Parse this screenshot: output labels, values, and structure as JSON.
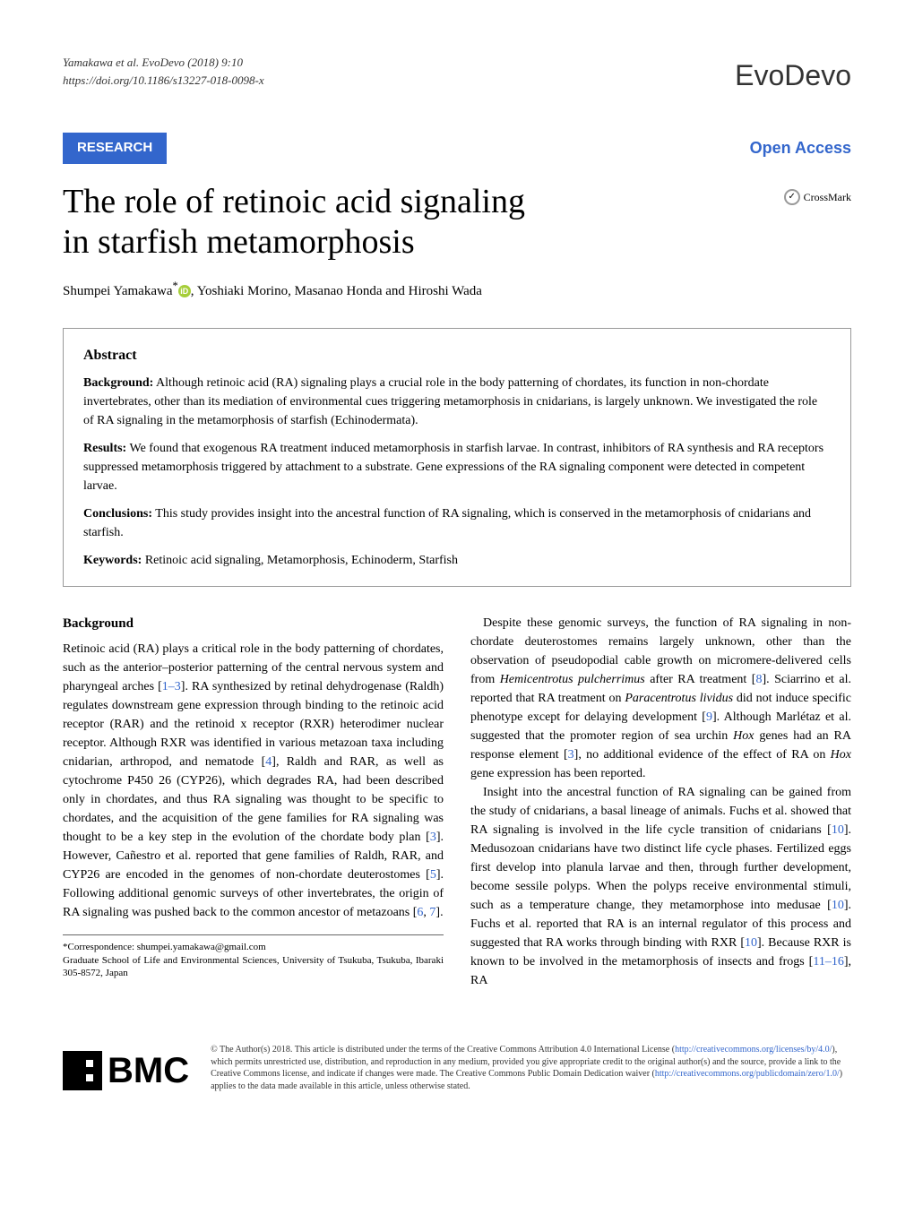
{
  "header": {
    "citation_line1": "Yamakawa et al. EvoDevo  (2018) 9:10",
    "citation_line2": "https://doi.org/10.1186/s13227-018-0098-x",
    "journal_name": "EvoDevo"
  },
  "category": {
    "label": "RESEARCH",
    "open_access": "Open Access"
  },
  "crossmark": {
    "label": "CrossMark"
  },
  "article": {
    "title_line1": "The role of retinoic acid signaling",
    "title_line2": "in starfish metamorphosis",
    "authors_prefix": "Shumpei Yamakawa",
    "authors_suffix": ", Yoshiaki Morino, Masanao Honda and Hiroshi Wada",
    "asterisk": "*"
  },
  "abstract": {
    "heading": "Abstract",
    "background_label": "Background:",
    "background_text": " Although retinoic acid (RA) signaling plays a crucial role in the body patterning of chordates, its function in non-chordate invertebrates, other than its mediation of environmental cues triggering metamorphosis in cnidarians, is largely unknown. We investigated the role of RA signaling in the metamorphosis of starfish (Echinodermata).",
    "results_label": "Results:",
    "results_text": " We found that exogenous RA treatment induced metamorphosis in starfish larvae. In contrast, inhibitors of RA synthesis and RA receptors suppressed metamorphosis triggered by attachment to a substrate. Gene expressions of the RA signaling component were detected in competent larvae.",
    "conclusions_label": "Conclusions:",
    "conclusions_text": " This study provides insight into the ancestral function of RA signaling, which is conserved in the metamorphosis of cnidarians and starfish.",
    "keywords_label": "Keywords:",
    "keywords_text": " Retinoic acid signaling, Metamorphosis, Echinoderm, Starfish"
  },
  "body": {
    "background_heading": "Background",
    "para1a": "Retinoic acid (RA) plays a critical role in the body patterning of chordates, such as the anterior–posterior patterning of the central nervous system and pharyngeal arches [",
    "cite1": "1–3",
    "para1b": "]. RA synthesized by retinal dehydrogenase (Raldh) regulates downstream gene expression through binding to the retinoic acid receptor (RAR) and the retinoid x receptor (RXR) heterodimer nuclear receptor. Although RXR was identified in various metazoan taxa including cnidarian, arthropod, and nematode [",
    "cite4": "4",
    "para1c": "], Raldh and RAR, as well as cytochrome P450 26 (CYP26), which degrades RA, had been described only in chordates, and thus RA signaling was thought to be specific to chordates, and the acquisition of the gene families for RA signaling was thought to be a key step in the evolution of the chordate body plan [",
    "cite3": "3",
    "para1d": "]. However, Cañestro et al. reported that gene families of Raldh, RAR, and CYP26 are encoded in the genomes of non-chordate deuterostomes [",
    "cite5": "5",
    "para1e": "]. Following additional genomic surveys of other invertebrates, the origin of RA signaling was pushed back to the common ancestor of metazoans [",
    "cite6": "6",
    "cite_sep": ", ",
    "cite7": "7",
    "para1f": "].",
    "para2a": "Despite these genomic surveys, the function of RA signaling in non-chordate deuterostomes remains largely unknown, other than the observation of pseudopodial cable growth on micromere-delivered cells from ",
    "species1": "Hemicentrotus pulcherrimus",
    "para2b": " after RA treatment [",
    "cite8": "8",
    "para2c": "]. Sciarrino et al. reported that RA treatment on ",
    "species2": "Paracentrotus lividus",
    "para2d": " did not induce specific phenotype except for delaying development [",
    "cite9": "9",
    "para2e": "]. Although Marlétaz et al. suggested that the promoter region of sea urchin ",
    "hox1": "Hox",
    "para2f": " genes had an RA response element [",
    "cite3b": "3",
    "para2g": "], no additional evidence of the effect of RA on ",
    "hox2": "Hox",
    "para2h": " gene expression has been reported.",
    "para3a": "Insight into the ancestral function of RA signaling can be gained from the study of cnidarians, a basal lineage of animals. Fuchs et al. showed that RA signaling is involved in the life cycle transition of cnidarians [",
    "cite10": "10",
    "para3b": "]. Medusozoan cnidarians have two distinct life cycle phases. Fertilized eggs first develop into planula larvae and then, through further development, become sessile polyps. When the polyps receive environmental stimuli, such as a temperature change, they metamorphose into medusae [",
    "cite10b": "10",
    "para3c": "]. Fuchs et al. reported that RA is an internal regulator of this process and suggested that RA works through binding with RXR [",
    "cite10c": "10",
    "para3d": "]. Because RXR is known to be involved in the metamorphosis of insects and frogs [",
    "cite11": "11–16",
    "para3e": "], RA"
  },
  "correspondence": {
    "label": "*Correspondence:",
    "email": " shumpei.yamakawa@gmail.com",
    "affiliation": "Graduate School of Life and Environmental Sciences, University of Tsukuba, Tsukuba, Ibaraki 305-8572, Japan"
  },
  "footer": {
    "bmc": "BMC",
    "license1": "© The Author(s) 2018. This article is distributed under the terms of the Creative Commons Attribution 4.0 International License (",
    "license_url1": "http://creativecommons.org/licenses/by/4.0/",
    "license2": "), which permits unrestricted use, distribution, and reproduction in any medium, provided you give appropriate credit to the original author(s) and the source, provide a link to the Creative Commons license, and indicate if changes were made. The Creative Commons Public Domain Dedication waiver (",
    "license_url2": "http://creativecommons.org/publicdomain/zero/1.0/",
    "license3": ") applies to the data made available in this article, unless otherwise stated."
  }
}
